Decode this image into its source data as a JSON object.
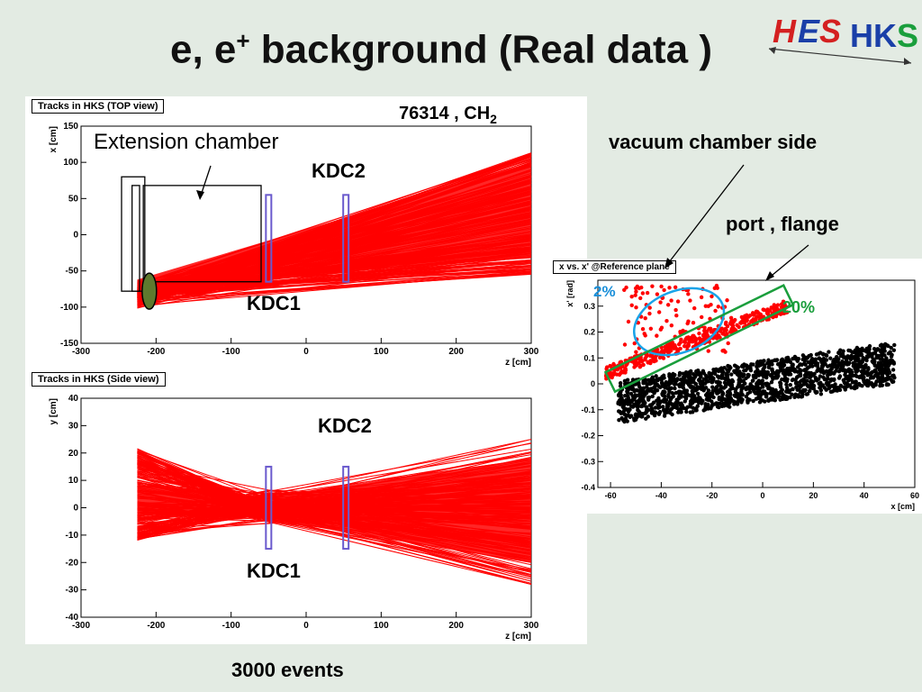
{
  "slide": {
    "title_main": "e, e",
    "title_sup": "+",
    "title_rest": " background (Real data )",
    "run_label": "76314 , CH",
    "run_sub": "2",
    "events_label": "3000 events",
    "logo_text_a": "HES",
    "logo_text_b": "HKS"
  },
  "annotations": {
    "extension_chamber": "Extension chamber",
    "kdc2_top": "KDC2",
    "kdc1_top": "KDC1",
    "kdc2_side": "KDC2",
    "kdc1_side": "KDC1",
    "vacuum_chamber_side": "vacuum chamber side",
    "port_flange": "port , flange",
    "pct_2": "2%",
    "pct_20": "20%"
  },
  "colors": {
    "tracks": "#ff0000",
    "kdc_frame": "#6a5acd",
    "ellipse_blue": "#1aa3e8",
    "box_green": "#1a9e3c",
    "pct_blue": "#1a8fd9",
    "pct_green": "#1a9e3c",
    "target_fill": "#5e7a2e"
  },
  "chart_data": [
    {
      "type": "line",
      "title": "Tracks in HKS (TOP view)",
      "xlabel": "z [cm]",
      "ylabel": "x [cm]",
      "xlim": [
        -300,
        300
      ],
      "ylim": [
        -150,
        150
      ],
      "x_ticks": [
        -300,
        -200,
        -100,
        0,
        100,
        200,
        300
      ],
      "y_ticks": [
        -150,
        -100,
        -50,
        0,
        50,
        100,
        150
      ],
      "x_tick_labels": [
        "-300",
        "-200",
        "-100",
        "0",
        "100",
        "200",
        "300"
      ],
      "y_tick_labels": [
        "-150",
        "-100",
        "-50",
        "0",
        "50",
        "100",
        "150"
      ],
      "description_of_bundle": "track fan from z=-225 spreading to z=300",
      "envelope_start_z": -225,
      "envelope_start_x": [
        -105,
        -60
      ],
      "envelope_end_z": 300,
      "envelope_end_x": [
        -55,
        115
      ],
      "kdc_planes_z": [
        -50,
        53
      ],
      "kdc_planes_x_range": [
        -65,
        55
      ]
    },
    {
      "type": "line",
      "title": "Tracks in HKS (Side view)",
      "xlabel": "z [cm]",
      "ylabel": "y [cm]",
      "xlim": [
        -300,
        300
      ],
      "ylim": [
        -40,
        40
      ],
      "x_ticks": [
        -300,
        -200,
        -100,
        0,
        100,
        200,
        300
      ],
      "y_ticks": [
        -40,
        -30,
        -20,
        -10,
        0,
        10,
        20,
        30,
        40
      ],
      "x_tick_labels": [
        "-300",
        "-200",
        "-100",
        "0",
        "100",
        "200",
        "300"
      ],
      "y_tick_labels": [
        "-40",
        "-30",
        "-20",
        "-10",
        "0",
        "10",
        "20",
        "30",
        "40"
      ],
      "envelope_start_z": -225,
      "envelope_start_y": [
        -12,
        22
      ],
      "waist_z": -50,
      "waist_y": [
        -8,
        8
      ],
      "envelope_end_z": 300,
      "envelope_end_y": [
        -28,
        25
      ],
      "kdc_planes_z": [
        -50,
        53
      ],
      "kdc_planes_y_range": [
        -15,
        15
      ]
    },
    {
      "type": "scatter",
      "title": "x vs. x' @Reference plane",
      "xlabel": "x [cm]",
      "ylabel": "x' [rad]",
      "xlim": [
        -65,
        60
      ],
      "ylim": [
        -0.4,
        0.4
      ],
      "x_ticks": [
        -60,
        -40,
        -20,
        0,
        20,
        40,
        60
      ],
      "y_ticks": [
        -0.4,
        -0.3,
        -0.2,
        -0.1,
        0,
        0.1,
        0.2,
        0.3
      ],
      "x_tick_labels": [
        "-60",
        "-40",
        "-20",
        "0",
        "20",
        "40",
        "60"
      ],
      "y_tick_labels": [
        "-0.4",
        "-0.3",
        "-0.2",
        "-0.1",
        "0",
        "0.1",
        "0.2",
        "0.3"
      ],
      "series": [
        {
          "color": "#000000",
          "band_x": [
            -57,
            52
          ],
          "band_center_start": -0.07,
          "band_center_end": 0.08,
          "half_width": 0.08,
          "count": 1600
        },
        {
          "color": "#ff0000",
          "band_x": [
            -62,
            10
          ],
          "band_center_start": 0.04,
          "band_center_end": 0.3,
          "half_width": 0.025,
          "count": 380
        },
        {
          "color": "#ff0000",
          "scatter_x": [
            -55,
            -12
          ],
          "scatter_y": [
            0.12,
            0.38
          ],
          "count": 110
        }
      ]
    }
  ]
}
